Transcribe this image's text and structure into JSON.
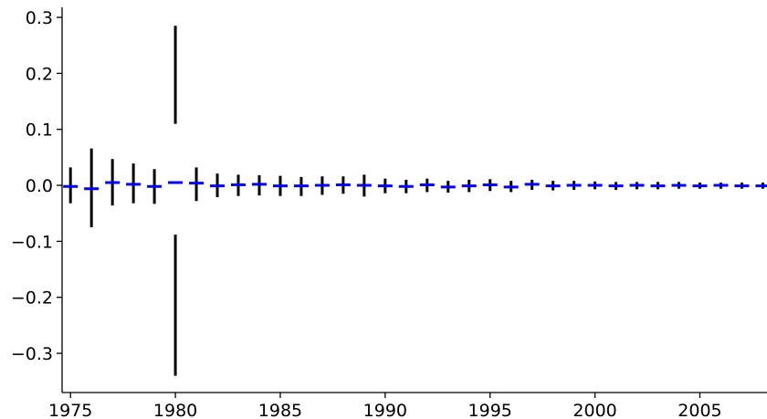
{
  "chart_data": {
    "type": "error-bar",
    "title": "",
    "xlabel": "",
    "ylabel": "",
    "xlim": [
      1974.6,
      2008.2
    ],
    "ylim": [
      -0.37,
      0.318
    ],
    "x_ticks": [
      1975,
      1980,
      1985,
      1990,
      1995,
      2000,
      2005
    ],
    "y_ticks": [
      -0.3,
      -0.2,
      -0.1,
      0.0,
      0.1,
      0.2,
      0.3
    ],
    "x_tick_labels": [
      "1975",
      "1980",
      "1985",
      "1990",
      "1995",
      "2000",
      "2005"
    ],
    "y_tick_labels": [
      "−0.3",
      "−0.2",
      "−0.1",
      "0.0",
      "0.1",
      "0.2",
      "0.3"
    ],
    "grid": false,
    "spines": [
      "left",
      "bottom"
    ],
    "colors": {
      "point": "#0000ff",
      "error_bar": "#000000",
      "axis": "#000000"
    },
    "points": [
      {
        "x": 1975,
        "y": -0.002,
        "lo": -0.032,
        "hi": 0.032
      },
      {
        "x": 1976,
        "y": -0.006,
        "lo": -0.075,
        "hi": 0.066
      },
      {
        "x": 1977,
        "y": 0.005,
        "lo": -0.036,
        "hi": 0.047
      },
      {
        "x": 1978,
        "y": 0.002,
        "lo": -0.032,
        "hi": 0.039
      },
      {
        "x": 1979,
        "y": -0.002,
        "lo": -0.033,
        "hi": 0.029
      },
      {
        "x": 1980,
        "y": 0.005,
        "lo": -0.34,
        "hi": 0.285,
        "gap": [
          -0.088,
          0.11
        ]
      },
      {
        "x": 1981,
        "y": 0.004,
        "lo": -0.028,
        "hi": 0.032
      },
      {
        "x": 1982,
        "y": -0.001,
        "lo": -0.021,
        "hi": 0.021
      },
      {
        "x": 1983,
        "y": 0.001,
        "lo": -0.019,
        "hi": 0.019
      },
      {
        "x": 1984,
        "y": 0.002,
        "lo": -0.018,
        "hi": 0.018
      },
      {
        "x": 1985,
        "y": -0.001,
        "lo": -0.019,
        "hi": 0.017
      },
      {
        "x": 1986,
        "y": -0.001,
        "lo": -0.019,
        "hi": 0.015
      },
      {
        "x": 1987,
        "y": 0.0,
        "lo": -0.017,
        "hi": 0.016
      },
      {
        "x": 1988,
        "y": 0.001,
        "lo": -0.015,
        "hi": 0.016
      },
      {
        "x": 1989,
        "y": 0.0,
        "lo": -0.02,
        "hi": 0.019
      },
      {
        "x": 1990,
        "y": -0.001,
        "lo": -0.014,
        "hi": 0.012
      },
      {
        "x": 1991,
        "y": -0.002,
        "lo": -0.014,
        "hi": 0.01
      },
      {
        "x": 1992,
        "y": 0.001,
        "lo": -0.012,
        "hi": 0.012
      },
      {
        "x": 1993,
        "y": -0.003,
        "lo": -0.013,
        "hi": 0.008
      },
      {
        "x": 1994,
        "y": -0.001,
        "lo": -0.012,
        "hi": 0.01
      },
      {
        "x": 1995,
        "y": 0.001,
        "lo": -0.01,
        "hi": 0.011
      },
      {
        "x": 1996,
        "y": -0.003,
        "lo": -0.012,
        "hi": 0.008
      },
      {
        "x": 1997,
        "y": 0.002,
        "lo": -0.008,
        "hi": 0.01
      },
      {
        "x": 1998,
        "y": -0.001,
        "lo": -0.009,
        "hi": 0.008
      },
      {
        "x": 1999,
        "y": 0.0,
        "lo": -0.008,
        "hi": 0.008
      },
      {
        "x": 2000,
        "y": 0.0,
        "lo": -0.007,
        "hi": 0.007
      },
      {
        "x": 2001,
        "y": -0.001,
        "lo": -0.008,
        "hi": 0.006
      },
      {
        "x": 2002,
        "y": 0.0,
        "lo": -0.007,
        "hi": 0.006
      },
      {
        "x": 2003,
        "y": -0.001,
        "lo": -0.007,
        "hi": 0.006
      },
      {
        "x": 2004,
        "y": 0.0,
        "lo": -0.006,
        "hi": 0.006
      },
      {
        "x": 2005,
        "y": -0.001,
        "lo": -0.006,
        "hi": 0.005
      },
      {
        "x": 2006,
        "y": 0.0,
        "lo": -0.006,
        "hi": 0.005
      },
      {
        "x": 2007,
        "y": -0.001,
        "lo": -0.006,
        "hi": 0.005
      },
      {
        "x": 2008,
        "y": -0.001,
        "lo": -0.006,
        "hi": 0.005
      }
    ]
  }
}
